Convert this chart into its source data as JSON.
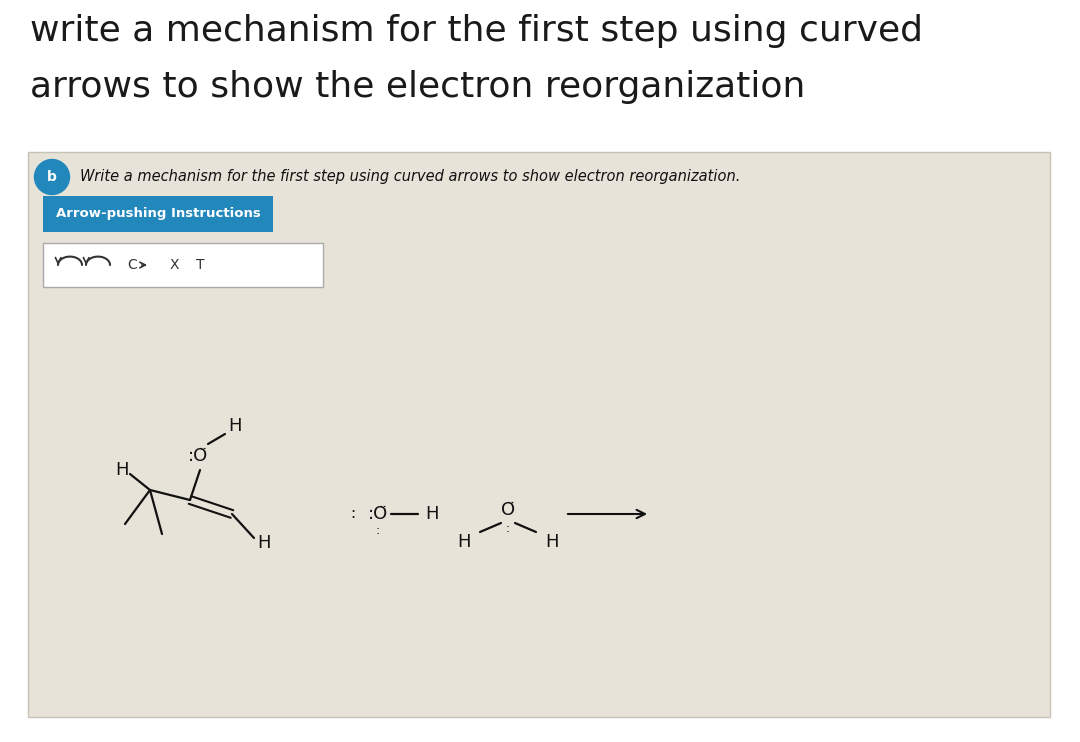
{
  "title_line1": "write a mechanism for the first step using curved",
  "title_line2": "arrows to show the electron reorganization",
  "title_fontsize": 26,
  "title_color": "#1a1a1a",
  "bg_color": "#ffffff",
  "panel_bg": "#e8e3d8",
  "panel_border": "#c8c3b8",
  "subtitle": "Write a mechanism for the first step using curved arrows to show electron reorganization.",
  "subtitle_fontsize": 10.5,
  "button_text": "Arrow-pushing Instructions",
  "button_bg": "#2288bb",
  "button_text_color": "#ffffff",
  "button_fontsize": 9.5,
  "circle_b_color": "#2288bb",
  "mol_color": "#111111"
}
